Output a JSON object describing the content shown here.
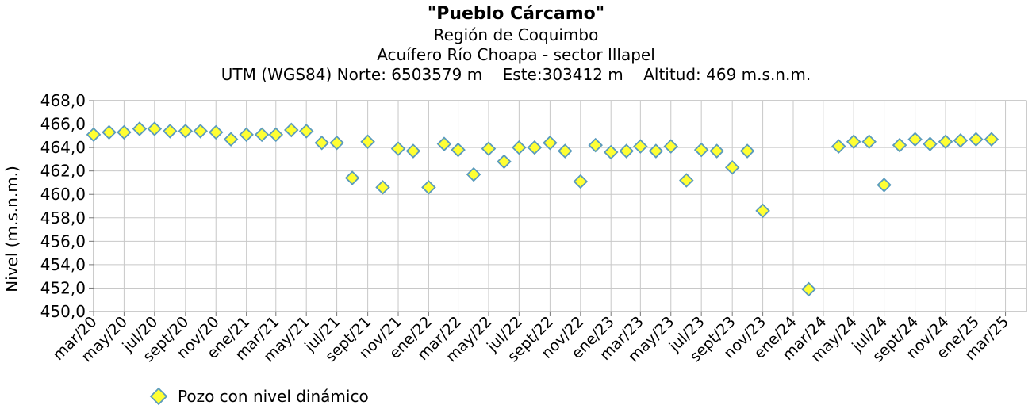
{
  "chart_data": {
    "type": "scatter",
    "title": "\"Pueblo Cárcamo\"",
    "subtitle": [
      "Región de Coquimbo",
      "Acuífero Río Choapa - sector Illapel",
      "UTM (WGS84) Norte: 6503579 m    Este:303412 m    Altitud: 469 m.s.n.m."
    ],
    "ylabel": "Nivel (m.s.n.m.)",
    "xlabel": "",
    "ylim": [
      450,
      468
    ],
    "yticks": [
      "450,0",
      "452,0",
      "454,0",
      "456,0",
      "458,0",
      "460,0",
      "462,0",
      "464,0",
      "466,0",
      "468,0"
    ],
    "xticks": [
      "mar/20",
      "may/20",
      "jul/20",
      "sept/20",
      "nov/20",
      "ene/21",
      "mar/21",
      "may/21",
      "jul/21",
      "sept/21",
      "nov/21",
      "ene/22",
      "mar/22",
      "may/22",
      "jul/22",
      "sept/22",
      "nov/22",
      "ene/23",
      "mar/23",
      "may/23",
      "jul/23",
      "sept/23",
      "nov/23",
      "ene/24",
      "mar/24",
      "may/24",
      "jul/24",
      "sept/24",
      "nov/24",
      "ene/25",
      "mar/25"
    ],
    "grid": true,
    "legend_position": "bottom-left",
    "series": [
      {
        "name": "Pozo con nivel dinámico",
        "color": "#ffff33",
        "edge_color": "#5a9bbd",
        "marker": "diamond",
        "points": [
          [
            "2020-03-01",
            465.1
          ],
          [
            "2020-04-01",
            465.3
          ],
          [
            "2020-05-01",
            465.3
          ],
          [
            "2020-06-01",
            465.6
          ],
          [
            "2020-07-01",
            465.6
          ],
          [
            "2020-08-01",
            465.4
          ],
          [
            "2020-09-01",
            465.4
          ],
          [
            "2020-10-01",
            465.4
          ],
          [
            "2020-11-01",
            465.3
          ],
          [
            "2020-12-01",
            464.7
          ],
          [
            "2021-01-01",
            465.1
          ],
          [
            "2021-02-01",
            465.1
          ],
          [
            "2021-03-01",
            465.1
          ],
          [
            "2021-04-01",
            465.5
          ],
          [
            "2021-05-01",
            465.4
          ],
          [
            "2021-06-01",
            464.4
          ],
          [
            "2021-07-01",
            464.4
          ],
          [
            "2021-08-01",
            461.4
          ],
          [
            "2021-09-01",
            464.5
          ],
          [
            "2021-10-01",
            460.6
          ],
          [
            "2021-11-01",
            463.9
          ],
          [
            "2021-12-01",
            463.7
          ],
          [
            "2022-01-01",
            460.6
          ],
          [
            "2022-02-01",
            464.3
          ],
          [
            "2022-03-01",
            463.8
          ],
          [
            "2022-04-01",
            461.7
          ],
          [
            "2022-05-01",
            463.9
          ],
          [
            "2022-06-01",
            462.8
          ],
          [
            "2022-07-01",
            464.0
          ],
          [
            "2022-08-01",
            464.0
          ],
          [
            "2022-09-01",
            464.4
          ],
          [
            "2022-10-01",
            463.7
          ],
          [
            "2022-11-01",
            461.1
          ],
          [
            "2022-12-01",
            464.2
          ],
          [
            "2023-01-01",
            463.6
          ],
          [
            "2023-02-01",
            463.7
          ],
          [
            "2023-03-01",
            464.1
          ],
          [
            "2023-04-01",
            463.7
          ],
          [
            "2023-05-01",
            464.1
          ],
          [
            "2023-06-01",
            461.2
          ],
          [
            "2023-07-01",
            463.8
          ],
          [
            "2023-08-01",
            463.7
          ],
          [
            "2023-09-01",
            462.3
          ],
          [
            "2023-10-01",
            463.7
          ],
          [
            "2023-11-01",
            458.6
          ],
          [
            "2024-02-01",
            451.9
          ],
          [
            "2024-04-01",
            464.1
          ],
          [
            "2024-05-01",
            464.5
          ],
          [
            "2024-06-01",
            464.5
          ],
          [
            "2024-07-01",
            460.8
          ],
          [
            "2024-08-01",
            464.2
          ],
          [
            "2024-09-01",
            464.7
          ],
          [
            "2024-10-01",
            464.3
          ],
          [
            "2024-11-01",
            464.5
          ],
          [
            "2024-12-01",
            464.6
          ],
          [
            "2025-01-01",
            464.7
          ],
          [
            "2025-02-01",
            464.7
          ]
        ]
      }
    ]
  }
}
